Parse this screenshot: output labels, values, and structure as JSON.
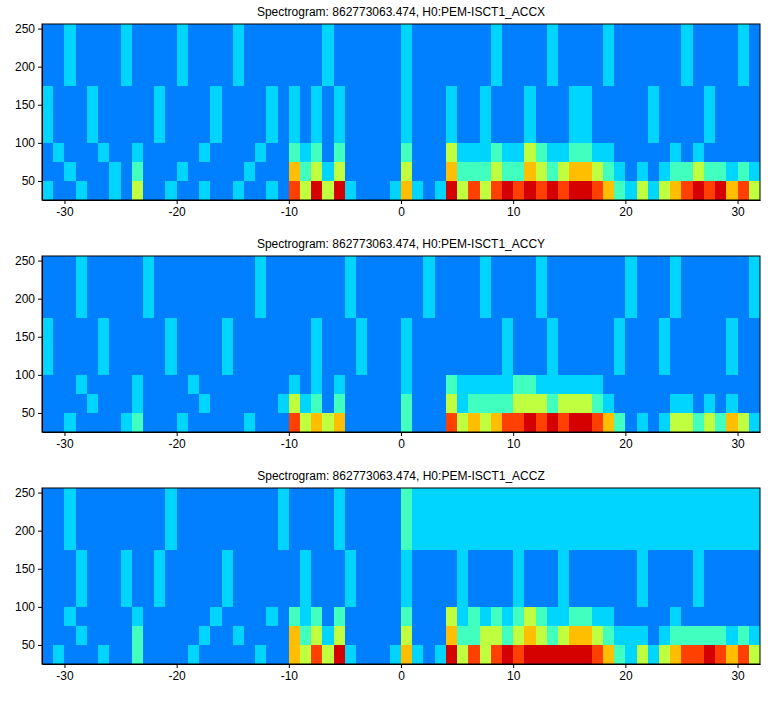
{
  "chart_data": [
    {
      "type": "heatmap",
      "title": "Spectrogram: 862773063.474, H0:PEM-ISCT1_ACCX",
      "x_edges": [
        -32,
        -31,
        -30,
        -29,
        -28,
        -27,
        -26,
        -25,
        -24,
        -23,
        -22,
        -21,
        -20,
        -19,
        -18,
        -17,
        -16,
        -15,
        -14,
        -13,
        -12,
        -11,
        -10,
        -9,
        -8,
        -7,
        -6,
        -5,
        -4,
        -3,
        -2,
        -1,
        0,
        1,
        2,
        3,
        4,
        5,
        6,
        7,
        8,
        9,
        10,
        11,
        12,
        13,
        14,
        15,
        16,
        17,
        18,
        19,
        20,
        21,
        22,
        23,
        24,
        25,
        26,
        27,
        28,
        29,
        30,
        31,
        32
      ],
      "y_edges": [
        25,
        50,
        75,
        100,
        175,
        256
      ],
      "z": [
        [
          4,
          3,
          3,
          4,
          3,
          3,
          4,
          3,
          6,
          3,
          3,
          4,
          3,
          3,
          4,
          3,
          3,
          4,
          3,
          3,
          4,
          3,
          8,
          6,
          9,
          6,
          9,
          4,
          3,
          3,
          3,
          4,
          7,
          4,
          3,
          4,
          9,
          6,
          8,
          6,
          8,
          9,
          8,
          9,
          8,
          9,
          8,
          9,
          9,
          8,
          7,
          5,
          4,
          6,
          4,
          6,
          7,
          8,
          9,
          8,
          9,
          7,
          8,
          6
        ],
        [
          3,
          3,
          4,
          3,
          3,
          3,
          4,
          3,
          5,
          3,
          3,
          3,
          4,
          3,
          3,
          3,
          3,
          3,
          4,
          3,
          3,
          3,
          7,
          5,
          6,
          4,
          6,
          3,
          3,
          3,
          3,
          3,
          6,
          3,
          3,
          3,
          7,
          5,
          5,
          5,
          6,
          5,
          5,
          7,
          6,
          5,
          6,
          7,
          7,
          6,
          5,
          4,
          3,
          4,
          3,
          4,
          5,
          5,
          6,
          5,
          5,
          4,
          5,
          4
        ],
        [
          3,
          4,
          3,
          3,
          3,
          4,
          3,
          3,
          4,
          3,
          3,
          3,
          3,
          3,
          4,
          3,
          3,
          3,
          3,
          4,
          3,
          3,
          5,
          4,
          5,
          3,
          5,
          3,
          3,
          3,
          3,
          3,
          5,
          3,
          3,
          3,
          6,
          4,
          4,
          4,
          5,
          4,
          4,
          6,
          5,
          4,
          4,
          5,
          5,
          4,
          4,
          3,
          3,
          3,
          3,
          3,
          4,
          3,
          4,
          3,
          3,
          3,
          3,
          3
        ],
        [
          4,
          3,
          3,
          3,
          4,
          3,
          3,
          3,
          3,
          3,
          4,
          3,
          3,
          3,
          3,
          4,
          3,
          3,
          3,
          3,
          4,
          3,
          4,
          3,
          4,
          3,
          4,
          3,
          3,
          3,
          3,
          3,
          4,
          3,
          3,
          3,
          4,
          3,
          3,
          4,
          3,
          3,
          3,
          4,
          3,
          3,
          3,
          4,
          4,
          3,
          3,
          3,
          3,
          3,
          4,
          3,
          3,
          3,
          3,
          4,
          3,
          3,
          3,
          3
        ],
        [
          3,
          3,
          4,
          3,
          3,
          3,
          3,
          4,
          3,
          3,
          3,
          3,
          4,
          3,
          3,
          3,
          3,
          4,
          3,
          3,
          3,
          3,
          3,
          3,
          3,
          4,
          3,
          3,
          3,
          3,
          3,
          3,
          4,
          3,
          3,
          3,
          3,
          3,
          3,
          3,
          4,
          3,
          3,
          3,
          3,
          4,
          3,
          3,
          3,
          3,
          4,
          3,
          3,
          3,
          3,
          3,
          3,
          4,
          3,
          3,
          3,
          3,
          4,
          3
        ]
      ],
      "zlim": [
        0,
        10
      ],
      "xlim": [
        -32,
        32
      ],
      "xticks": [
        -30,
        -20,
        -10,
        0,
        10,
        20,
        30
      ],
      "ylim": [
        25,
        256
      ],
      "yticks": [
        50,
        100,
        150,
        200,
        250
      ]
    },
    {
      "type": "heatmap",
      "title": "Spectrogram: 862773063.474, H0:PEM-ISCT1_ACCY",
      "x_edges": [
        -32,
        -31,
        -30,
        -29,
        -28,
        -27,
        -26,
        -25,
        -24,
        -23,
        -22,
        -21,
        -20,
        -19,
        -18,
        -17,
        -16,
        -15,
        -14,
        -13,
        -12,
        -11,
        -10,
        -9,
        -8,
        -7,
        -6,
        -5,
        -4,
        -3,
        -2,
        -1,
        0,
        1,
        2,
        3,
        4,
        5,
        6,
        7,
        8,
        9,
        10,
        11,
        12,
        13,
        14,
        15,
        16,
        17,
        18,
        19,
        20,
        21,
        22,
        23,
        24,
        25,
        26,
        27,
        28,
        29,
        30,
        31,
        32
      ],
      "y_edges": [
        25,
        50,
        75,
        100,
        175,
        256
      ],
      "z": [
        [
          3,
          3,
          4,
          3,
          3,
          3,
          3,
          4,
          5,
          3,
          3,
          3,
          4,
          3,
          3,
          3,
          3,
          3,
          4,
          3,
          3,
          3,
          8,
          6,
          7,
          6,
          7,
          3,
          3,
          3,
          3,
          3,
          5,
          3,
          3,
          3,
          8,
          6,
          7,
          6,
          7,
          8,
          8,
          9,
          8,
          9,
          8,
          9,
          9,
          8,
          7,
          5,
          3,
          4,
          3,
          4,
          6,
          6,
          5,
          6,
          5,
          7,
          6,
          4
        ],
        [
          3,
          3,
          3,
          3,
          4,
          3,
          3,
          3,
          4,
          3,
          3,
          3,
          3,
          3,
          4,
          3,
          3,
          3,
          3,
          3,
          3,
          4,
          6,
          4,
          5,
          3,
          5,
          3,
          3,
          3,
          3,
          3,
          5,
          3,
          3,
          3,
          6,
          4,
          5,
          5,
          5,
          5,
          6,
          6,
          6,
          5,
          6,
          6,
          6,
          5,
          4,
          3,
          3,
          3,
          3,
          3,
          4,
          4,
          3,
          4,
          3,
          4,
          3,
          3
        ],
        [
          3,
          3,
          3,
          4,
          3,
          3,
          3,
          3,
          4,
          3,
          3,
          3,
          3,
          4,
          3,
          3,
          3,
          3,
          3,
          3,
          3,
          3,
          4,
          3,
          4,
          3,
          4,
          3,
          3,
          3,
          3,
          3,
          4,
          3,
          3,
          3,
          5,
          4,
          4,
          4,
          4,
          4,
          5,
          5,
          4,
          4,
          4,
          4,
          4,
          4,
          3,
          3,
          3,
          3,
          3,
          3,
          3,
          3,
          3,
          3,
          3,
          3,
          3,
          3
        ],
        [
          4,
          3,
          3,
          3,
          3,
          4,
          3,
          3,
          3,
          3,
          3,
          4,
          3,
          3,
          3,
          3,
          4,
          3,
          3,
          3,
          3,
          3,
          3,
          3,
          4,
          3,
          3,
          3,
          4,
          3,
          3,
          3,
          4,
          3,
          3,
          3,
          3,
          3,
          3,
          3,
          3,
          4,
          3,
          3,
          3,
          4,
          3,
          3,
          3,
          3,
          3,
          4,
          3,
          3,
          3,
          4,
          3,
          3,
          3,
          3,
          3,
          4,
          3,
          3
        ],
        [
          3,
          3,
          3,
          4,
          3,
          3,
          3,
          3,
          3,
          4,
          3,
          3,
          3,
          3,
          3,
          3,
          3,
          3,
          3,
          4,
          3,
          3,
          3,
          3,
          3,
          3,
          3,
          4,
          3,
          3,
          3,
          3,
          3,
          3,
          4,
          3,
          3,
          3,
          3,
          4,
          3,
          3,
          3,
          3,
          4,
          3,
          3,
          3,
          3,
          3,
          3,
          3,
          4,
          3,
          3,
          3,
          4,
          3,
          3,
          3,
          3,
          3,
          3,
          4
        ]
      ],
      "zlim": [
        0,
        10
      ],
      "xlim": [
        -32,
        32
      ],
      "xticks": [
        -30,
        -20,
        -10,
        0,
        10,
        20,
        30
      ],
      "ylim": [
        25,
        256
      ],
      "yticks": [
        50,
        100,
        150,
        200,
        250
      ]
    },
    {
      "type": "heatmap",
      "title": "Spectrogram: 862773063.474, H0:PEM-ISCT1_ACCZ",
      "x_edges": [
        -32,
        -31,
        -30,
        -29,
        -28,
        -27,
        -26,
        -25,
        -24,
        -23,
        -22,
        -21,
        -20,
        -19,
        -18,
        -17,
        -16,
        -15,
        -14,
        -13,
        -12,
        -11,
        -10,
        -9,
        -8,
        -7,
        -6,
        -5,
        -4,
        -3,
        -2,
        -1,
        0,
        1,
        2,
        3,
        4,
        5,
        6,
        7,
        8,
        9,
        10,
        11,
        12,
        13,
        14,
        15,
        16,
        17,
        18,
        19,
        20,
        21,
        22,
        23,
        24,
        25,
        26,
        27,
        28,
        29,
        30,
        31,
        32
      ],
      "y_edges": [
        25,
        50,
        75,
        100,
        175,
        256
      ],
      "z": [
        [
          3,
          4,
          3,
          3,
          3,
          4,
          3,
          3,
          5,
          3,
          3,
          3,
          3,
          4,
          3,
          3,
          3,
          3,
          3,
          4,
          3,
          3,
          7,
          6,
          8,
          6,
          9,
          4,
          3,
          3,
          3,
          4,
          7,
          4,
          3,
          4,
          9,
          6,
          8,
          6,
          8,
          9,
          8,
          9,
          9,
          9,
          9,
          9,
          9,
          8,
          7,
          5,
          4,
          6,
          4,
          6,
          7,
          8,
          8,
          9,
          8,
          7,
          8,
          6
        ],
        [
          3,
          3,
          3,
          4,
          3,
          3,
          3,
          3,
          5,
          3,
          3,
          3,
          3,
          3,
          4,
          3,
          3,
          4,
          3,
          3,
          3,
          3,
          7,
          5,
          6,
          4,
          6,
          3,
          3,
          3,
          3,
          3,
          6,
          3,
          3,
          3,
          7,
          5,
          5,
          6,
          6,
          5,
          6,
          7,
          6,
          5,
          6,
          7,
          7,
          6,
          5,
          4,
          4,
          4,
          3,
          4,
          5,
          5,
          5,
          5,
          5,
          4,
          5,
          4
        ],
        [
          3,
          3,
          4,
          3,
          3,
          3,
          3,
          3,
          4,
          3,
          3,
          3,
          3,
          3,
          3,
          4,
          3,
          3,
          3,
          3,
          4,
          3,
          5,
          4,
          5,
          3,
          5,
          3,
          3,
          3,
          3,
          3,
          5,
          3,
          3,
          3,
          6,
          4,
          5,
          4,
          5,
          4,
          5,
          6,
          5,
          4,
          4,
          5,
          5,
          4,
          4,
          3,
          3,
          3,
          3,
          3,
          4,
          3,
          3,
          3,
          3,
          3,
          3,
          3
        ],
        [
          3,
          3,
          3,
          4,
          3,
          3,
          3,
          4,
          3,
          3,
          4,
          3,
          3,
          3,
          3,
          3,
          4,
          3,
          3,
          3,
          3,
          3,
          3,
          4,
          3,
          3,
          3,
          4,
          3,
          3,
          3,
          3,
          4,
          3,
          3,
          3,
          3,
          4,
          3,
          3,
          3,
          3,
          4,
          3,
          3,
          3,
          4,
          3,
          3,
          3,
          3,
          3,
          3,
          4,
          3,
          3,
          3,
          3,
          4,
          3,
          3,
          3,
          3,
          3
        ],
        [
          3,
          3,
          4,
          3,
          3,
          3,
          3,
          3,
          3,
          3,
          3,
          4,
          3,
          3,
          3,
          3,
          3,
          3,
          3,
          3,
          3,
          4,
          3,
          3,
          3,
          3,
          4,
          3,
          3,
          3,
          3,
          3,
          5,
          4,
          4,
          4,
          4,
          4,
          4,
          4,
          4,
          4,
          4,
          4,
          4,
          4,
          4,
          4,
          4,
          4,
          4,
          4,
          4,
          4,
          4,
          4,
          4,
          4,
          4,
          4,
          4,
          4,
          4,
          4
        ]
      ],
      "zlim": [
        0,
        10
      ],
      "xlim": [
        -32,
        32
      ],
      "xticks": [
        -30,
        -20,
        -10,
        0,
        10,
        20,
        30
      ],
      "ylim": [
        25,
        256
      ],
      "yticks": [
        50,
        100,
        150,
        200,
        250
      ]
    }
  ]
}
